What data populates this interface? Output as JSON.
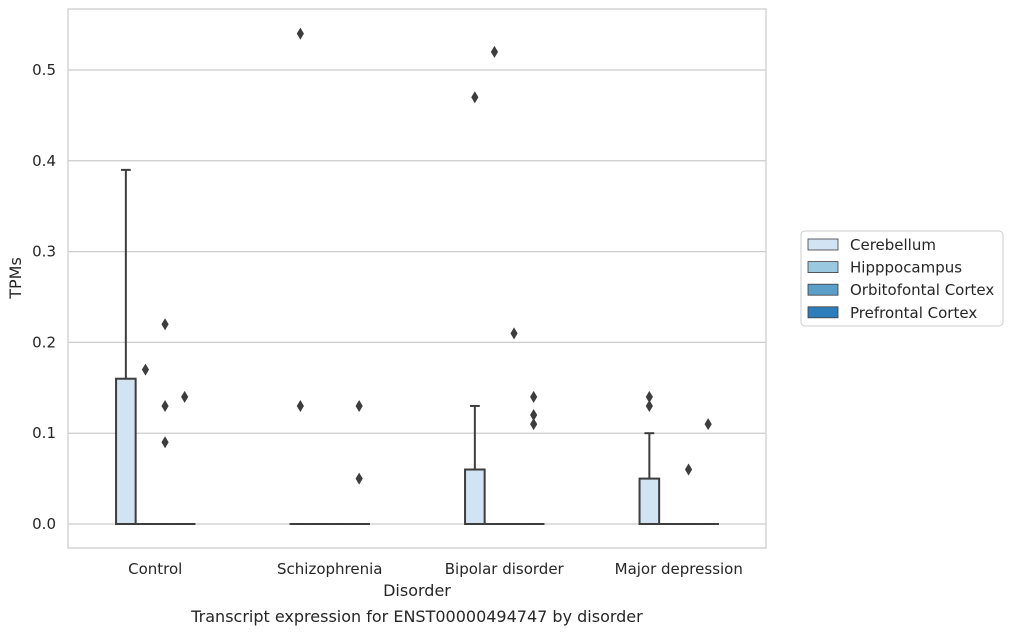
{
  "chart_data": {
    "type": "box",
    "title": "",
    "caption": "Transcript expression for ENST00000494747 by disorder",
    "xlabel": "Disorder",
    "ylabel": "TPMs",
    "ylim": [
      -0.027,
      0.566
    ],
    "yticks": [
      "0.0",
      "0.1",
      "0.2",
      "0.3",
      "0.4",
      "0.5"
    ],
    "grid": true,
    "legend_position": "right",
    "categories": [
      "Control",
      "Schizophrenia",
      "Bipolar disorder",
      "Major depression"
    ],
    "series": [
      {
        "name": "Cerebellum",
        "color": "#d2e3f3",
        "boxes": [
          {
            "q1": 0,
            "median": 0,
            "q3": 0.16,
            "whisker_low": 0,
            "whisker_high": 0.39,
            "outliers": []
          },
          {
            "q1": 0,
            "median": 0,
            "q3": 0,
            "whisker_low": 0,
            "whisker_high": 0,
            "outliers": [
              0.54,
              0.13
            ]
          },
          {
            "q1": 0,
            "median": 0,
            "q3": 0.06,
            "whisker_low": 0,
            "whisker_high": 0.13,
            "outliers": [
              0.47
            ]
          },
          {
            "q1": 0,
            "median": 0,
            "q3": 0.05,
            "whisker_low": 0,
            "whisker_high": 0.1,
            "outliers": [
              0.14,
              0.13
            ]
          }
        ]
      },
      {
        "name": "Hipppocampus",
        "color": "#9ac8e0",
        "boxes": [
          {
            "q1": 0,
            "median": 0,
            "q3": 0,
            "whisker_low": 0,
            "whisker_high": 0,
            "outliers": [
              0.17
            ]
          },
          {
            "q1": 0,
            "median": 0,
            "q3": 0,
            "whisker_low": 0,
            "whisker_high": 0,
            "outliers": []
          },
          {
            "q1": 0,
            "median": 0,
            "q3": 0,
            "whisker_low": 0,
            "whisker_high": 0,
            "outliers": [
              0.52
            ]
          },
          {
            "q1": 0,
            "median": 0,
            "q3": 0,
            "whisker_low": 0,
            "whisker_high": 0,
            "outliers": []
          }
        ]
      },
      {
        "name": "Orbitofontal Cortex",
        "color": "#5a9ec9",
        "boxes": [
          {
            "q1": 0,
            "median": 0,
            "q3": 0,
            "whisker_low": 0,
            "whisker_high": 0,
            "outliers": [
              0.22,
              0.13,
              0.09
            ]
          },
          {
            "q1": 0,
            "median": 0,
            "q3": 0,
            "whisker_low": 0,
            "whisker_high": 0,
            "outliers": []
          },
          {
            "q1": 0,
            "median": 0,
            "q3": 0,
            "whisker_low": 0,
            "whisker_high": 0,
            "outliers": [
              0.21
            ]
          },
          {
            "q1": 0,
            "median": 0,
            "q3": 0,
            "whisker_low": 0,
            "whisker_high": 0,
            "outliers": [
              0.06
            ]
          }
        ]
      },
      {
        "name": "Prefrontal Cortex",
        "color": "#2d7dbb",
        "boxes": [
          {
            "q1": 0,
            "median": 0,
            "q3": 0,
            "whisker_low": 0,
            "whisker_high": 0,
            "outliers": [
              0.14
            ]
          },
          {
            "q1": 0,
            "median": 0,
            "q3": 0,
            "whisker_low": 0,
            "whisker_high": 0,
            "outliers": [
              0.13,
              0.05
            ]
          },
          {
            "q1": 0,
            "median": 0,
            "q3": 0,
            "whisker_low": 0,
            "whisker_high": 0,
            "outliers": [
              0.14,
              0.12,
              0.11
            ]
          },
          {
            "q1": 0,
            "median": 0,
            "q3": 0,
            "whisker_low": 0,
            "whisker_high": 0,
            "outliers": [
              0.11
            ]
          }
        ]
      }
    ]
  }
}
